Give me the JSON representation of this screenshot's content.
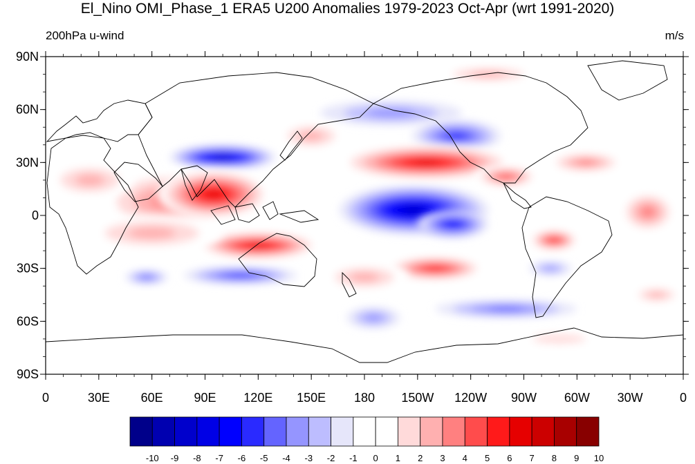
{
  "title": "El_Nino OMI_Phase_1 ERA5 U200 Anomalies 1979-2023 Oct-Apr (wrt 1991-2020)",
  "left_string": "200hPa u-wind",
  "right_string": "m/s",
  "lat_labels": [
    "90N",
    "60N",
    "30N",
    "0",
    "30S",
    "60S",
    "90S"
  ],
  "lat_values": [
    90,
    60,
    30,
    0,
    -30,
    -60,
    -90
  ],
  "lon_labels": [
    "0",
    "30E",
    "60E",
    "90E",
    "120E",
    "150E",
    "180",
    "150W",
    "120W",
    "90W",
    "60W",
    "30W",
    "0"
  ],
  "lon_values": [
    0,
    30,
    60,
    90,
    120,
    150,
    180,
    210,
    240,
    270,
    300,
    330,
    360
  ],
  "colorbar": {
    "labels": [
      "-10",
      "-9",
      "-8",
      "-7",
      "-6",
      "-5",
      "-4",
      "-3",
      "-2",
      "-1",
      "0",
      "1",
      "2",
      "3",
      "4",
      "5",
      "6",
      "7",
      "8",
      "9",
      "10"
    ],
    "colors": [
      "#00008a",
      "#0000b0",
      "#0000cc",
      "#0000e6",
      "#0000ff",
      "#2a2aff",
      "#6464ff",
      "#9595ff",
      "#bdbdff",
      "#e6e6fa",
      "#ffffff",
      "#ffffff",
      "#ffdada",
      "#ffb0b0",
      "#ff8080",
      "#ff4c4c",
      "#ff1a1a",
      "#e60000",
      "#cc0000",
      "#a80000",
      "#880000"
    ]
  },
  "anomaly_blobs": [
    {
      "lon": 100,
      "lat": 33,
      "rx": 30,
      "ry": 7,
      "level": -8
    },
    {
      "lon": 208,
      "lat": 3,
      "rx": 42,
      "ry": 14,
      "level": -8
    },
    {
      "lon": 230,
      "lat": -5,
      "rx": 20,
      "ry": 8,
      "level": -6
    },
    {
      "lon": 195,
      "lat": 58,
      "rx": 40,
      "ry": 7,
      "level": -3
    },
    {
      "lon": 232,
      "lat": 45,
      "rx": 25,
      "ry": 9,
      "level": -5
    },
    {
      "lon": 110,
      "lat": -34,
      "rx": 32,
      "ry": 5,
      "level": -5
    },
    {
      "lon": 57,
      "lat": -35,
      "rx": 12,
      "ry": 4,
      "level": -4
    },
    {
      "lon": 185,
      "lat": -58,
      "rx": 15,
      "ry": 6,
      "level": -3
    },
    {
      "lon": 260,
      "lat": -53,
      "rx": 40,
      "ry": 5,
      "level": -4
    },
    {
      "lon": 285,
      "lat": -30,
      "rx": 12,
      "ry": 4,
      "level": -3
    },
    {
      "lon": 70,
      "lat": 8,
      "rx": 40,
      "ry": 18,
      "level": 4
    },
    {
      "lon": 95,
      "lat": 12,
      "rx": 32,
      "ry": 14,
      "level": 7
    },
    {
      "lon": 120,
      "lat": -17,
      "rx": 35,
      "ry": 8,
      "level": 7
    },
    {
      "lon": 215,
      "lat": 30,
      "rx": 50,
      "ry": 10,
      "level": 7
    },
    {
      "lon": 260,
      "lat": 22,
      "rx": 18,
      "ry": 6,
      "level": 5
    },
    {
      "lon": 305,
      "lat": 30,
      "rx": 22,
      "ry": 6,
      "level": 4
    },
    {
      "lon": 220,
      "lat": -30,
      "rx": 28,
      "ry": 7,
      "level": 6
    },
    {
      "lon": 287,
      "lat": -14,
      "rx": 14,
      "ry": 6,
      "level": 6
    },
    {
      "lon": 340,
      "lat": 2,
      "rx": 16,
      "ry": 12,
      "level": 4
    },
    {
      "lon": 250,
      "lat": 80,
      "rx": 30,
      "ry": 5,
      "level": 3
    },
    {
      "lon": 180,
      "lat": -35,
      "rx": 25,
      "ry": 8,
      "level": 3
    },
    {
      "lon": 25,
      "lat": 20,
      "rx": 25,
      "ry": 10,
      "level": 3
    },
    {
      "lon": 290,
      "lat": -70,
      "rx": 30,
      "ry": 5,
      "level": 2
    },
    {
      "lon": 150,
      "lat": 45,
      "rx": 20,
      "ry": 8,
      "level": 3
    },
    {
      "lon": 60,
      "lat": -10,
      "rx": 40,
      "ry": 10,
      "level": 3
    },
    {
      "lon": 345,
      "lat": -45,
      "rx": 15,
      "ry": 5,
      "level": 3
    }
  ]
}
